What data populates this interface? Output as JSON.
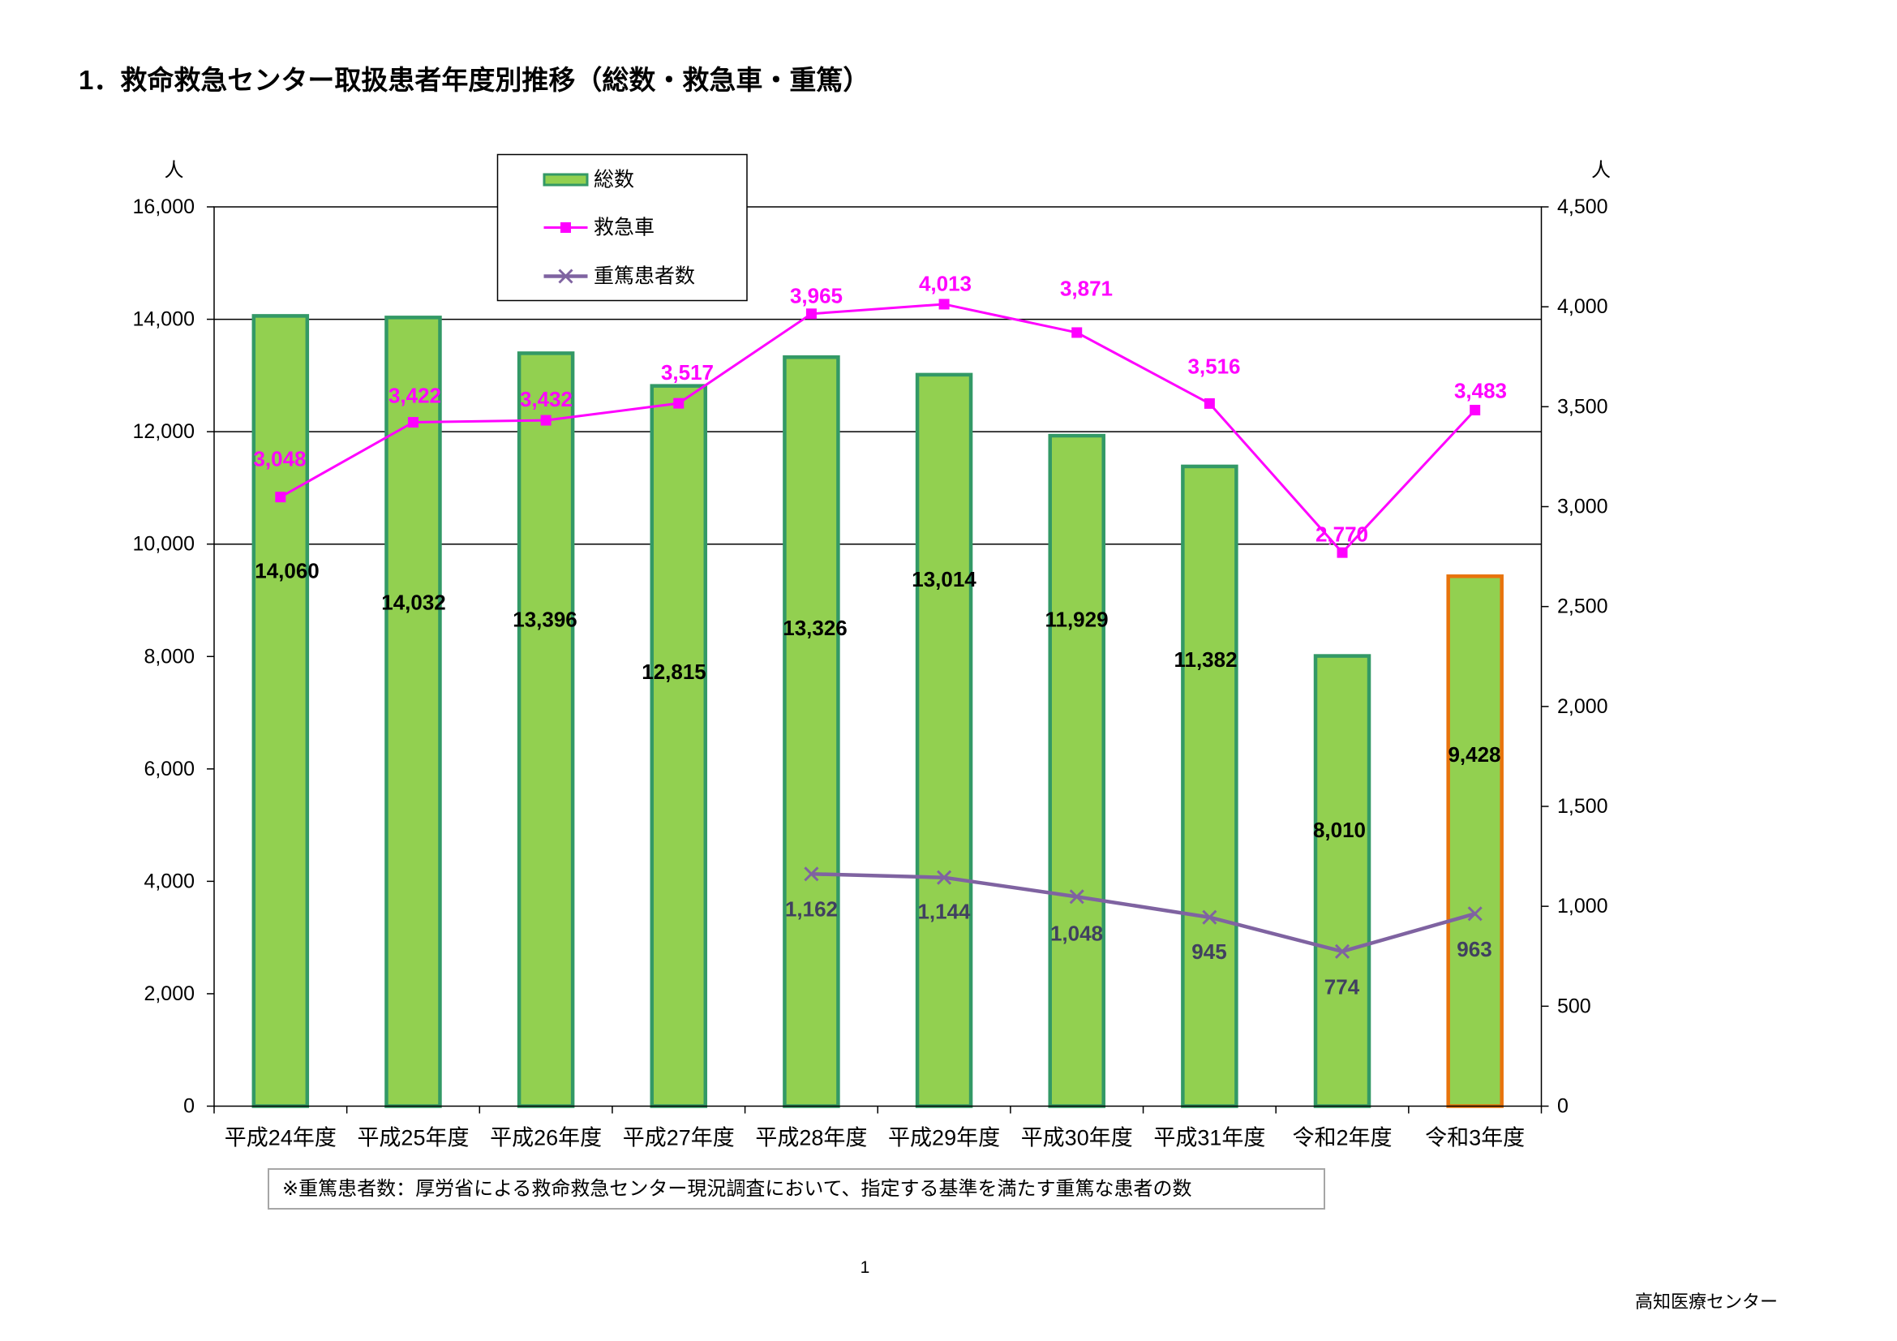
{
  "page": {
    "title": "1．救命救急センター取扱患者年度別推移（総数・救急車・重篤）",
    "note": "※重篤患者数：厚労省による救命救急センター現況調査において、指定する基準を満たす重篤な患者の数",
    "page_number": "1",
    "footer": "高知医療センター"
  },
  "colors": {
    "bar_fill": "#92D050",
    "bar_border": "#339966",
    "bar_highlight_border": "#E8730C",
    "bar_label": "#000000",
    "ambulance": "#FF00FF",
    "severe": "#7F63A1",
    "severe_label": "#404060",
    "grid": "#000000"
  },
  "chart_data": {
    "type": "bar",
    "categories": [
      "平成24年度",
      "平成25年度",
      "平成26年度",
      "平成27年度",
      "平成28年度",
      "平成29年度",
      "平成30年度",
      "平成31年度",
      "令和2年度",
      "令和3年度"
    ],
    "series": [
      {
        "name": "総数",
        "type": "bar",
        "axis": "left",
        "values": [
          14060,
          14032,
          13396,
          12815,
          13326,
          13014,
          11929,
          11382,
          8010,
          9428
        ]
      },
      {
        "name": "救急車",
        "type": "line",
        "axis": "right",
        "marker": "square",
        "values": [
          3048,
          3422,
          3432,
          3517,
          3965,
          4013,
          3871,
          3516,
          2770,
          3483
        ]
      },
      {
        "name": "重篤患者数",
        "type": "line",
        "axis": "right",
        "marker": "x",
        "values": [
          null,
          null,
          null,
          null,
          1162,
          1144,
          1048,
          945,
          774,
          963
        ]
      }
    ],
    "y_left": {
      "label": "人",
      "range": [
        0,
        16000
      ],
      "ticks": [
        0,
        2000,
        4000,
        6000,
        8000,
        10000,
        12000,
        14000,
        16000
      ]
    },
    "y_right": {
      "label": "人",
      "range": [
        0,
        4500
      ],
      "ticks": [
        0,
        500,
        1000,
        1500,
        2000,
        2500,
        3000,
        3500,
        4000,
        4500
      ]
    },
    "gridlines_left_axis": [
      10000,
      12000,
      14000
    ],
    "data_labels": true,
    "legend": "top-left",
    "highlighted_category": "令和3年度"
  }
}
